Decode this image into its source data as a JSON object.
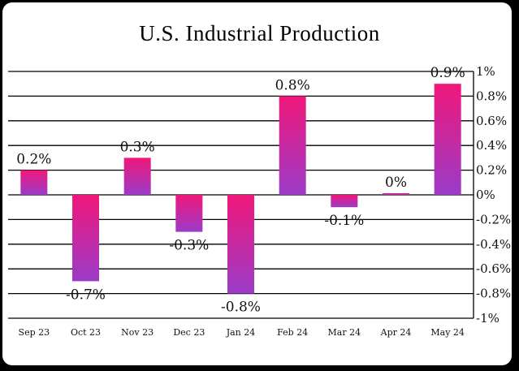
{
  "chart_data": {
    "type": "bar",
    "title": "U.S. Industrial Production",
    "categories": [
      "Sep 23",
      "Oct 23",
      "Nov 23",
      "Dec 23",
      "Jan 24",
      "Feb 24",
      "Mar 24",
      "Apr 24",
      "May 24"
    ],
    "values": [
      0.2,
      -0.7,
      0.3,
      -0.3,
      -0.8,
      0.8,
      -0.1,
      0.0,
      0.9
    ],
    "data_labels": [
      "0.2%",
      "-0.7%",
      "0.3%",
      "-0.3%",
      "-0.8%",
      "0.8%",
      "-0.1%",
      "0%",
      "0.9%"
    ],
    "ylim": [
      -1,
      1
    ],
    "yticks": [
      1,
      0.8,
      0.6,
      0.4,
      0.2,
      0,
      -0.2,
      -0.4,
      -0.6,
      -0.8,
      -1
    ],
    "ytick_labels": [
      "1%",
      "0.8%",
      "0.6%",
      "0.4%",
      "0.2%",
      "0%",
      "-0.2%",
      "-0.4%",
      "-0.6%",
      "-0.8%",
      "-1%"
    ],
    "y_axis_side": "right",
    "grid": true,
    "colors": {
      "top": "#f0177a",
      "bottom": "#9b3bc8"
    }
  }
}
